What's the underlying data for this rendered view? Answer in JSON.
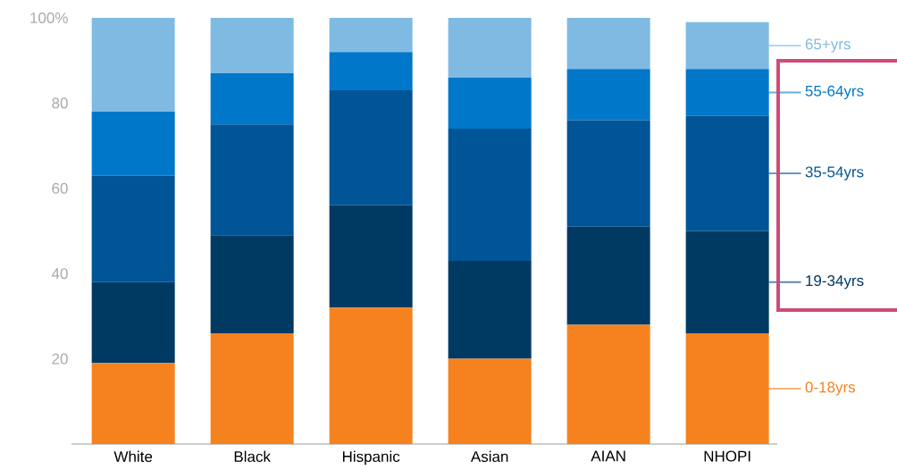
{
  "chart_data": {
    "type": "bar",
    "stacked": true,
    "categories": [
      "White",
      "Black",
      "Hispanic",
      "Asian",
      "AIAN",
      "NHOPI"
    ],
    "series": [
      {
        "name": "0-18yrs",
        "color": "#f5821f",
        "values": [
          19,
          26,
          32,
          20,
          28,
          26
        ]
      },
      {
        "name": "19-34yrs",
        "color": "#003a63",
        "values": [
          19,
          23,
          24,
          23,
          23,
          24
        ]
      },
      {
        "name": "35-54yrs",
        "color": "#005596",
        "values": [
          25,
          26,
          27,
          31,
          25,
          27
        ]
      },
      {
        "name": "55-64yrs",
        "color": "#0077c8",
        "values": [
          15,
          12,
          9,
          12,
          12,
          11
        ]
      },
      {
        "name": "65+yrs",
        "color": "#7fbae3",
        "values": [
          22,
          13,
          8,
          14,
          12,
          11
        ]
      }
    ],
    "ylim": [
      0,
      100
    ],
    "yticks": [
      20,
      40,
      60,
      80,
      {
        "value": 100,
        "label": "100%"
      }
    ],
    "grid": false,
    "legend": "right"
  }
}
